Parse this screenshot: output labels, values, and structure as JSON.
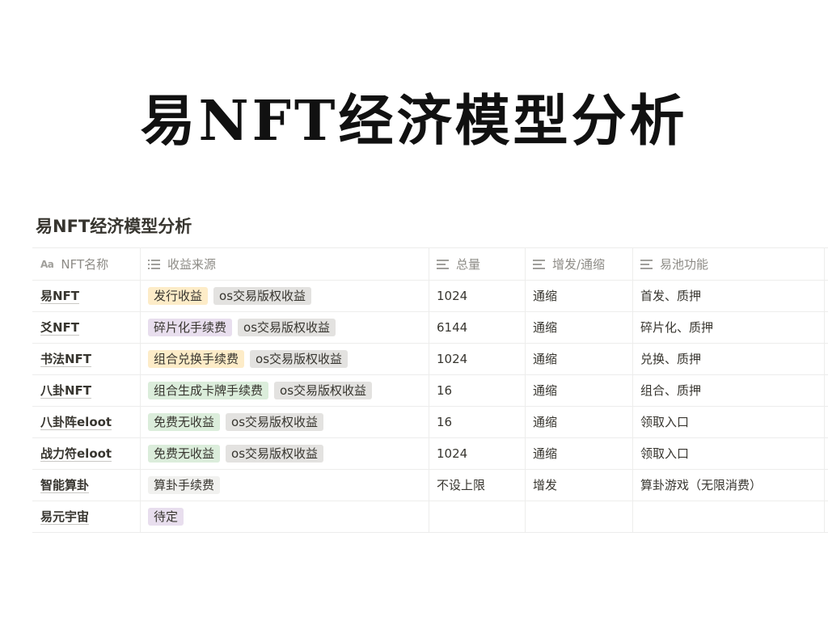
{
  "page": {
    "big_title": "易NFT经济模型分析"
  },
  "database": {
    "title": "易NFT经济模型分析",
    "headers": [
      {
        "label": "NFT名称",
        "icon": "title-property-icon"
      },
      {
        "label": "收益来源",
        "icon": "multi-select-icon"
      },
      {
        "label": "总量",
        "icon": "text-property-icon"
      },
      {
        "label": "增发/通缩",
        "icon": "text-property-icon"
      },
      {
        "label": "易池功能",
        "icon": "text-property-icon"
      }
    ],
    "tag_colors": {
      "orange": "#fdecc8",
      "gray": "#e3e2e0",
      "purple": "#e8deee",
      "green": "#dbeddb",
      "lightgray": "#f1f1ef"
    },
    "rows": [
      {
        "name": "易NFT",
        "tags": [
          {
            "text": "发行收益",
            "color": "orange"
          },
          {
            "text": "os交易版权收益",
            "color": "gray"
          }
        ],
        "total": "1024",
        "supply": "通缩",
        "pool": "首发、质押"
      },
      {
        "name": "爻NFT",
        "tags": [
          {
            "text": "碎片化手续费",
            "color": "purple"
          },
          {
            "text": "os交易版权收益",
            "color": "gray"
          }
        ],
        "total": "6144",
        "supply": "通缩",
        "pool": "碎片化、质押"
      },
      {
        "name": "书法NFT",
        "tags": [
          {
            "text": "组合兑换手续费",
            "color": "orange"
          },
          {
            "text": "os交易版权收益",
            "color": "gray"
          }
        ],
        "total": "1024",
        "supply": "通缩",
        "pool": "兑换、质押"
      },
      {
        "name": "八卦NFT",
        "tags": [
          {
            "text": "组合生成卡牌手续费",
            "color": "green"
          },
          {
            "text": "os交易版权收益",
            "color": "gray"
          }
        ],
        "total": "16",
        "supply": "通缩",
        "pool": "组合、质押"
      },
      {
        "name": "八卦阵eloot",
        "tags": [
          {
            "text": "免费无收益",
            "color": "green"
          },
          {
            "text": "os交易版权收益",
            "color": "gray"
          }
        ],
        "total": "16",
        "supply": "通缩",
        "pool": "领取入口"
      },
      {
        "name": "战力符eloot",
        "tags": [
          {
            "text": "免费无收益",
            "color": "green"
          },
          {
            "text": "os交易版权收益",
            "color": "gray"
          }
        ],
        "total": "1024",
        "supply": "通缩",
        "pool": "领取入口"
      },
      {
        "name": "智能算卦",
        "tags": [
          {
            "text": "算卦手续费",
            "color": "lightgray"
          }
        ],
        "total": "不设上限",
        "supply": "增发",
        "pool": "算卦游戏（无限消费）"
      },
      {
        "name": "易元宇宙",
        "tags": [
          {
            "text": "待定",
            "color": "purple"
          }
        ],
        "total": "",
        "supply": "",
        "pool": ""
      }
    ]
  }
}
